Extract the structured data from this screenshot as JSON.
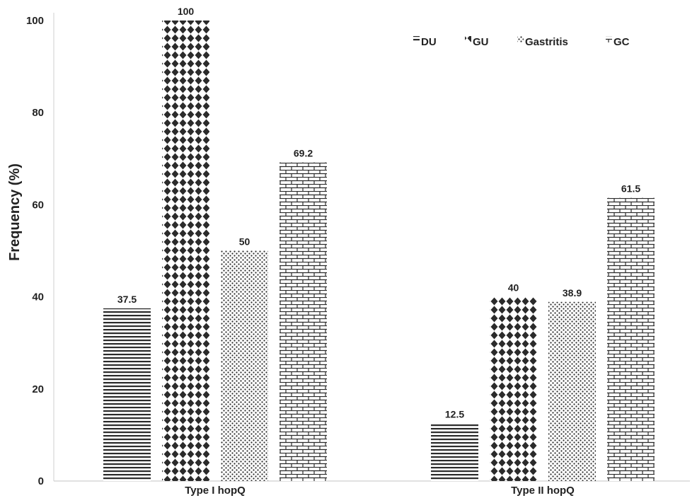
{
  "chart_data": {
    "type": "bar",
    "title": "",
    "xlabel": "",
    "ylabel": "Frequency (%)",
    "ylim": [
      0,
      100
    ],
    "yticks": [
      0,
      20,
      40,
      60,
      80,
      100
    ],
    "grid": false,
    "legend_position": "top-right",
    "categories": [
      "Type I hopQ",
      "Type II hopQ"
    ],
    "series": [
      {
        "name": "DU",
        "values": [
          37.5,
          12.5
        ],
        "labels": [
          "37.5",
          "12.5"
        ],
        "pattern": "horizontal-lines"
      },
      {
        "name": "GU",
        "values": [
          100,
          40
        ],
        "labels": [
          "100",
          "40"
        ],
        "pattern": "diamonds"
      },
      {
        "name": "Gastritis",
        "values": [
          50,
          38.9
        ],
        "labels": [
          "50",
          "38.9"
        ],
        "pattern": "dots"
      },
      {
        "name": "GC",
        "values": [
          69.2,
          61.5
        ],
        "labels": [
          "69.2",
          "61.5"
        ],
        "pattern": "bricks"
      }
    ],
    "colors": {
      "fill": "#2b2b2b",
      "background": "#ffffff",
      "axis": "#cccccc"
    }
  }
}
